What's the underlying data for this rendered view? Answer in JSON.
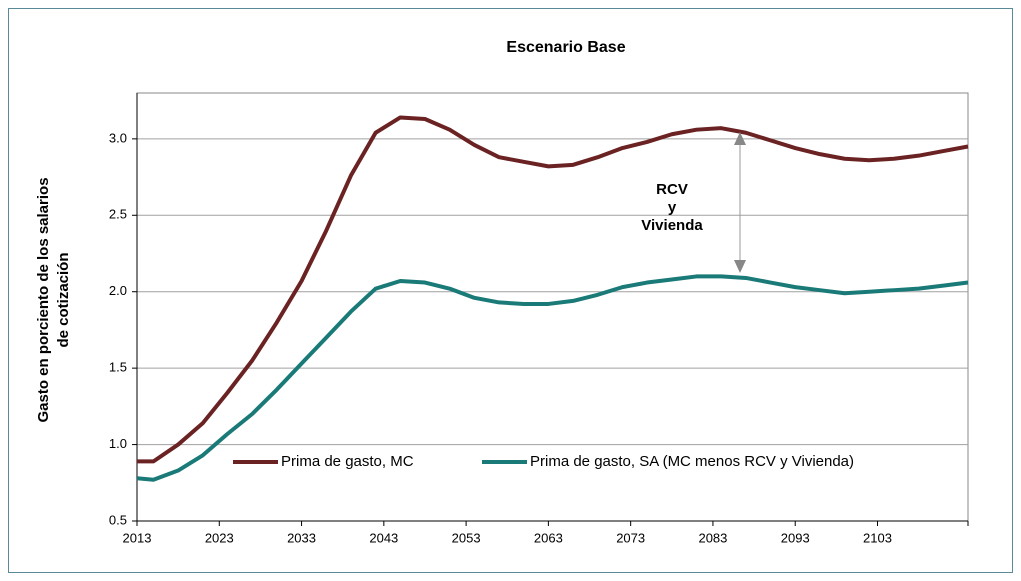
{
  "chart_data": {
    "type": "line",
    "title": "Escenario Base",
    "ylabel": [
      "Gasto en porciento de los salarios",
      "de cotización"
    ],
    "annotation": [
      "RCV",
      "y",
      "Vivienda"
    ],
    "x": [
      2013,
      2015,
      2018,
      2021,
      2024,
      2027,
      2030,
      2033,
      2036,
      2039,
      2042,
      2045,
      2048,
      2051,
      2054,
      2057,
      2060,
      2063,
      2066,
      2069,
      2072,
      2075,
      2078,
      2081,
      2084,
      2087,
      2090,
      2093,
      2096,
      2099,
      2102,
      2105,
      2108,
      2111,
      2114
    ],
    "series": [
      {
        "name": "Prima de gasto, MC",
        "color": "#6b2222",
        "values": [
          0.89,
          0.89,
          1.0,
          1.14,
          1.34,
          1.55,
          1.8,
          2.07,
          2.4,
          2.76,
          3.04,
          3.14,
          3.13,
          3.06,
          2.96,
          2.88,
          2.85,
          2.82,
          2.83,
          2.88,
          2.94,
          2.98,
          3.03,
          3.06,
          3.07,
          3.04,
          2.99,
          2.94,
          2.9,
          2.87,
          2.86,
          2.87,
          2.89,
          2.92,
          2.95
        ]
      },
      {
        "name": "Prima de gasto, SA (MC menos RCV y Vivienda)",
        "color": "#1a7a78",
        "values": [
          0.78,
          0.77,
          0.83,
          0.93,
          1.07,
          1.2,
          1.36,
          1.53,
          1.7,
          1.87,
          2.02,
          2.07,
          2.06,
          2.02,
          1.96,
          1.93,
          1.92,
          1.92,
          1.94,
          1.98,
          2.03,
          2.06,
          2.08,
          2.1,
          2.1,
          2.09,
          2.06,
          2.03,
          2.01,
          1.99,
          2.0,
          2.01,
          2.02,
          2.04,
          2.06
        ]
      }
    ],
    "xlim": [
      2013,
      2114
    ],
    "xticks": [
      2013,
      2023,
      2033,
      2043,
      2053,
      2063,
      2073,
      2083,
      2093,
      2103
    ],
    "ylim": [
      0.5,
      3.3
    ],
    "yticks": [
      0.5,
      {
        "value": 1,
        "label": "1.0"
      },
      1.5,
      {
        "value": 2,
        "label": "2.0"
      },
      2.5,
      {
        "value": 3,
        "label": "3.0"
      }
    ],
    "grid": true
  }
}
